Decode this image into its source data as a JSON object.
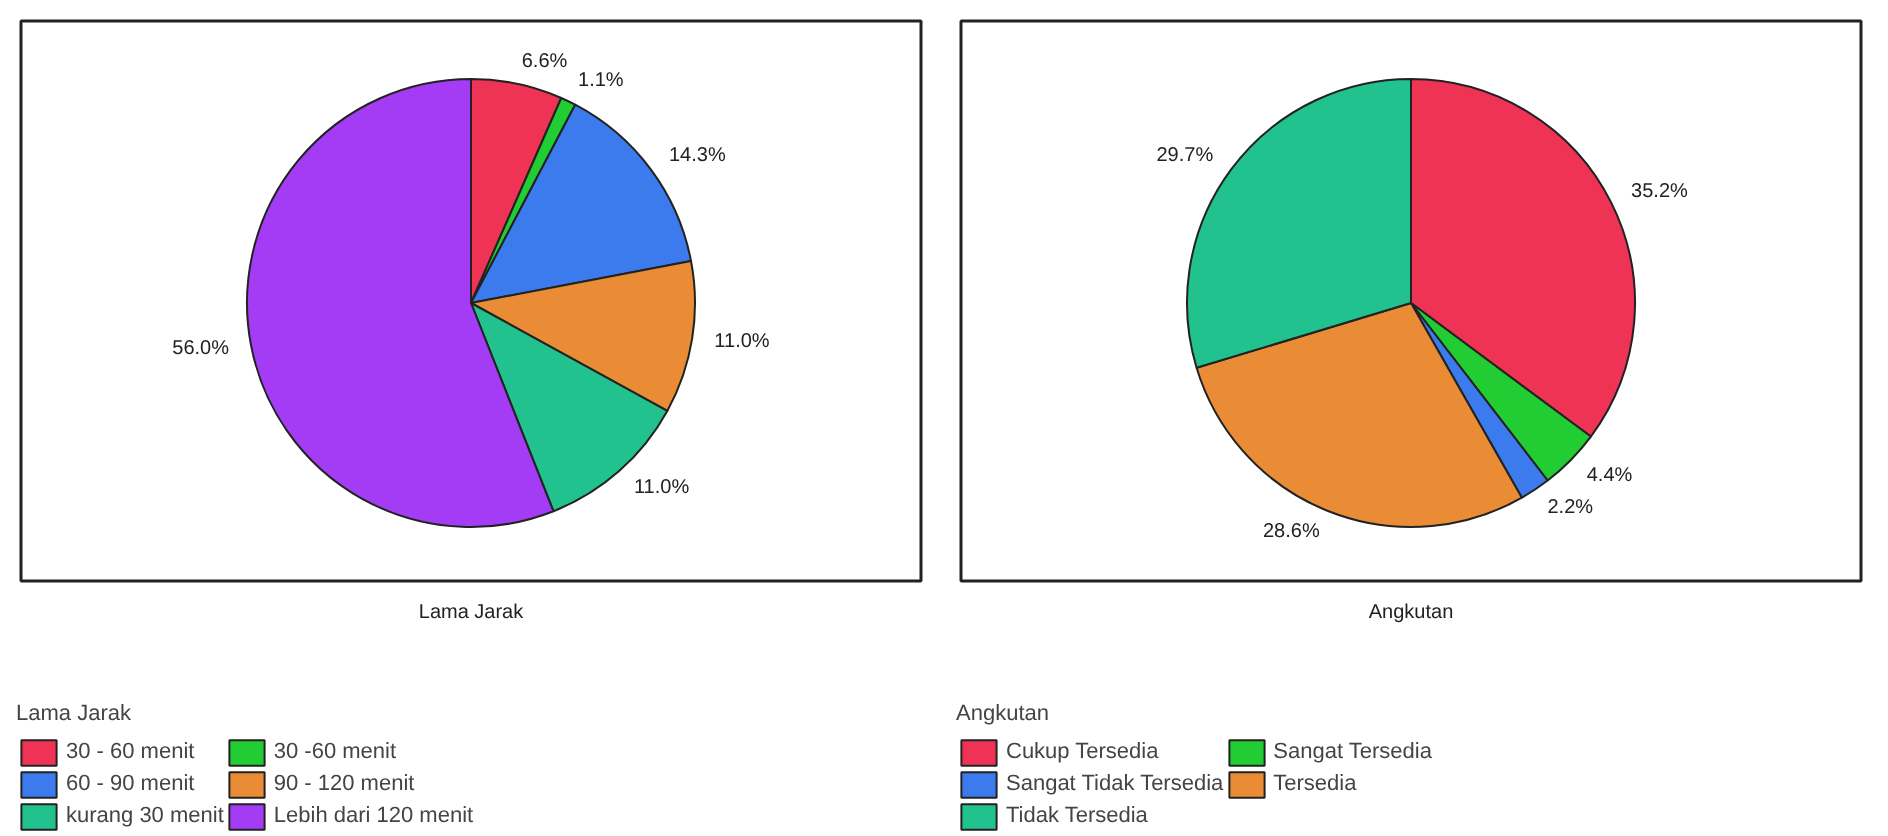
{
  "chart_data": [
    {
      "type": "pie",
      "xlabel": "Lama Jarak",
      "legend_title": "Lama Jarak",
      "legend": "bottom",
      "categories": [
        "30 - 60 menit",
        "30 -60 menit",
        "60 - 90 menit",
        "90 - 120 menit",
        "kurang 30 menit",
        "Lebih dari 120 menit"
      ],
      "values": [
        6.6,
        1.1,
        14.3,
        11.0,
        11.0,
        56.0
      ],
      "value_labels": [
        "6.6%",
        "1.1%",
        "14.3%",
        "11.0%",
        "11.0%",
        "56.0%"
      ],
      "colors": [
        "#ee3355",
        "#22cc33",
        "#3b7bee",
        "#ea8c35",
        "#22c28e",
        "#a53cf5"
      ]
    },
    {
      "type": "pie",
      "xlabel": "Angkutan",
      "legend_title": "Angkutan",
      "legend": "bottom",
      "categories": [
        "Cukup Tersedia",
        "Sangat Tersedia",
        "Sangat Tidak Tersedia",
        "Tersedia",
        "Tidak Tersedia"
      ],
      "values": [
        35.2,
        4.4,
        2.2,
        28.6,
        29.7
      ],
      "value_labels": [
        "35.2%",
        "4.4%",
        "2.2%",
        "28.6%",
        "29.7%"
      ],
      "colors": [
        "#ee3355",
        "#22cc33",
        "#3b7bee",
        "#ea8c35",
        "#22c28e"
      ]
    }
  ]
}
